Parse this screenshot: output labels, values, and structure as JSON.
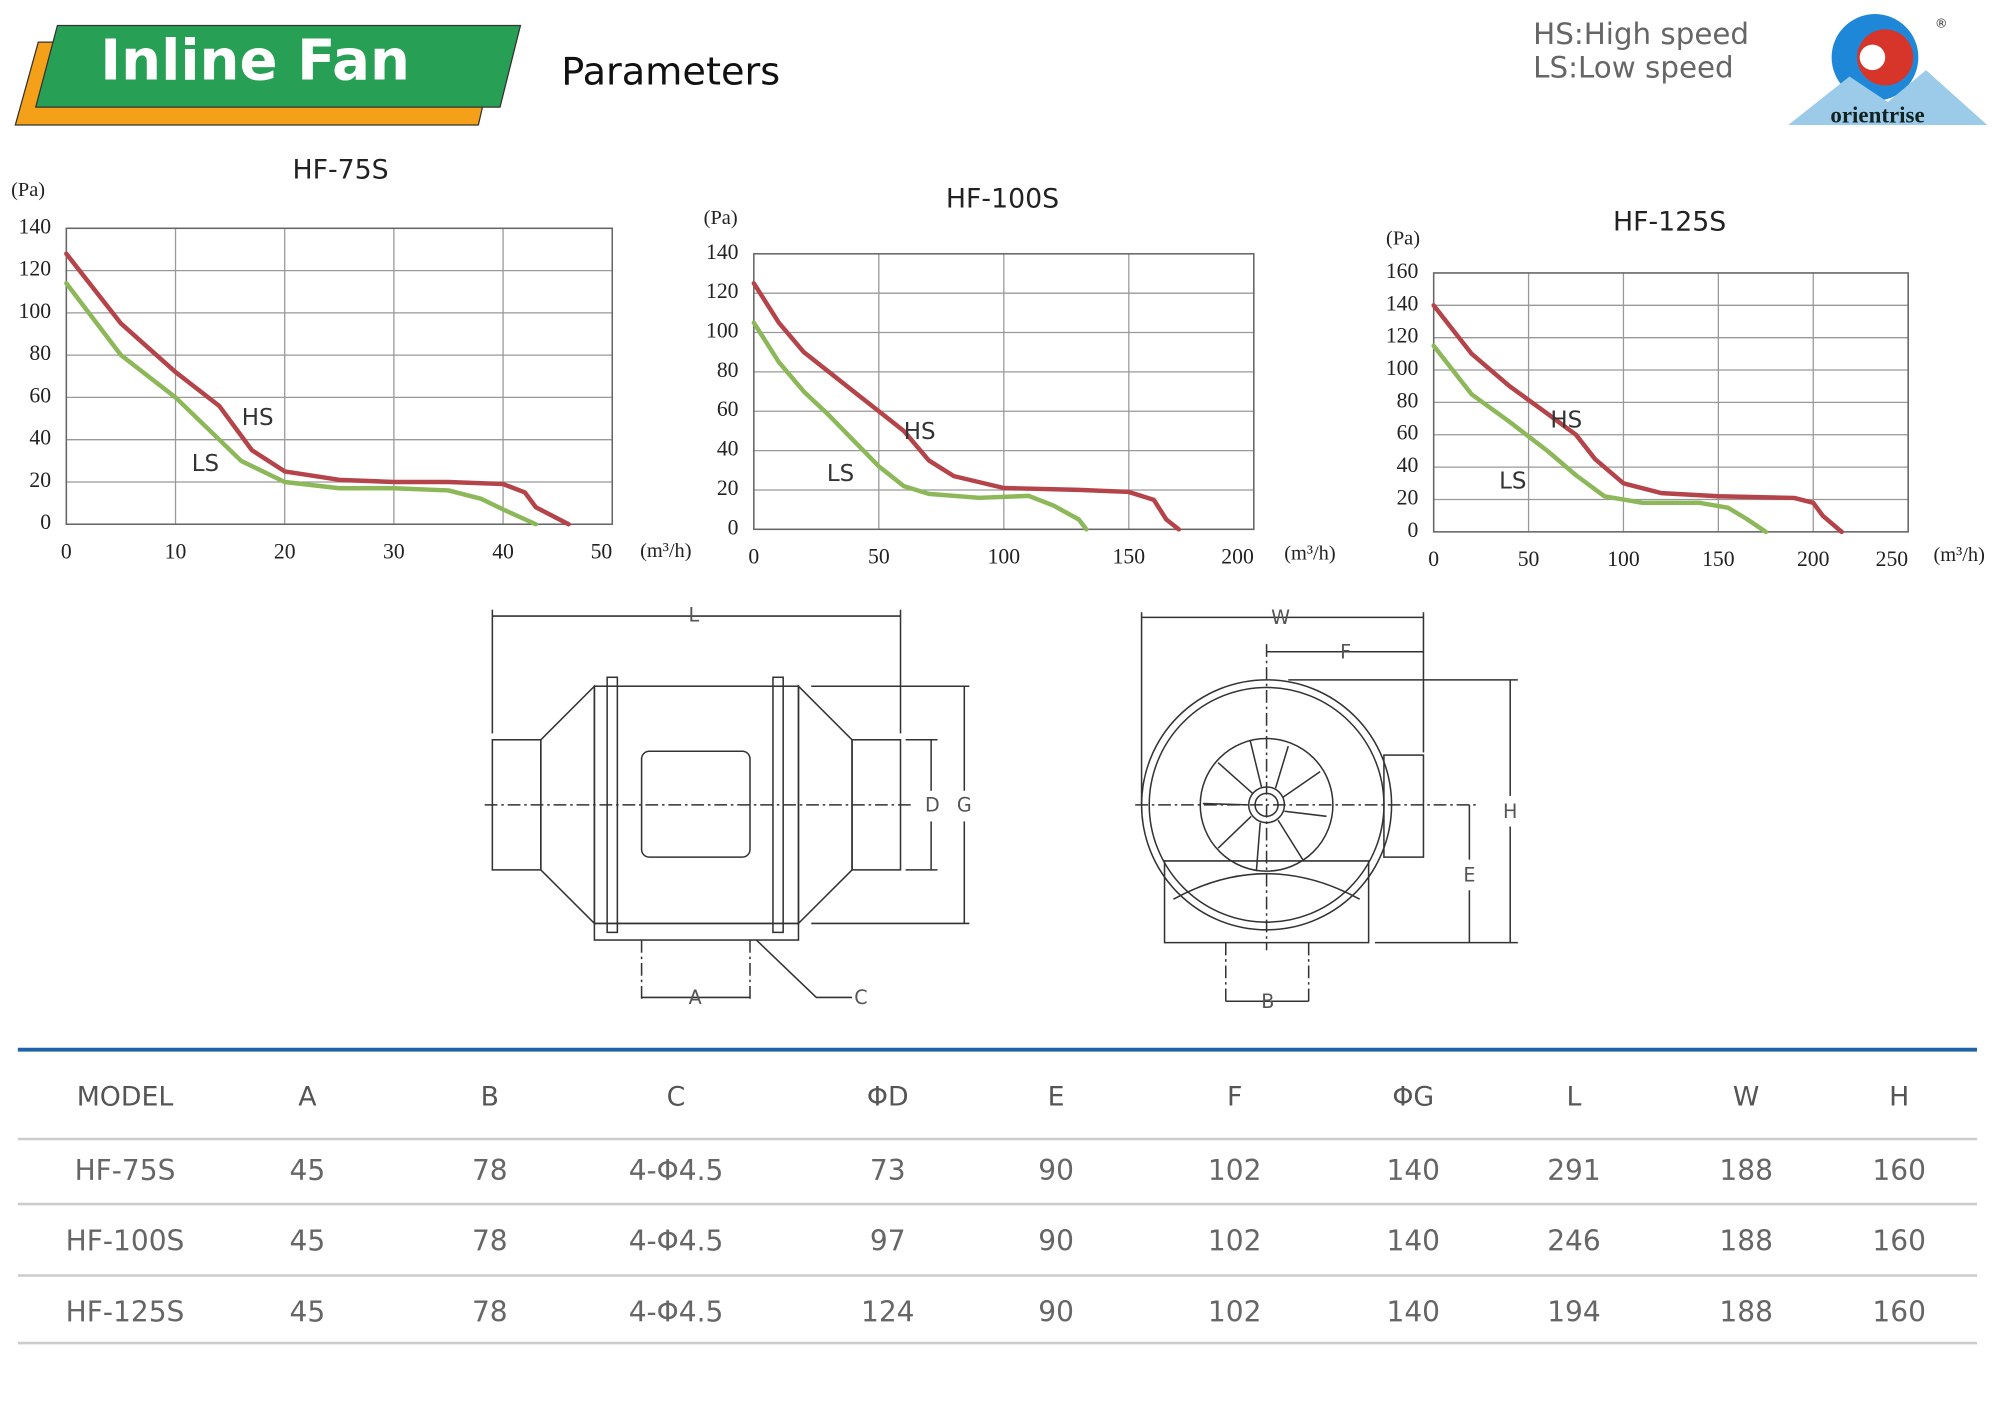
{
  "header": {
    "title": "Inline Fan",
    "subtitle": "Parameters",
    "legend_hs": "HS:High speed",
    "legend_ls": "LS:Low speed",
    "logo": "orientrise",
    "logo_mark": "®"
  },
  "chart_data": [
    {
      "type": "line",
      "title": "HF-75S",
      "y_label": "(Pa)",
      "x_label": "(m³/h)",
      "xlim": [
        0,
        50
      ],
      "ylim": [
        0,
        140
      ],
      "xticks": [
        0,
        10,
        20,
        30,
        40,
        50
      ],
      "yticks": [
        0,
        20,
        40,
        60,
        80,
        100,
        120,
        140
      ],
      "grid": true,
      "series": [
        {
          "name": "HS",
          "color": "#b5444a",
          "x": [
            0,
            5,
            10,
            14,
            17,
            20,
            25,
            30,
            35,
            40,
            42,
            43,
            46
          ],
          "values": [
            128,
            95,
            72,
            56,
            35,
            25,
            21,
            20,
            20,
            19,
            15,
            8,
            0
          ]
        },
        {
          "name": "LS",
          "color": "#8db85a",
          "x": [
            0,
            5,
            10,
            13,
            16,
            20,
            25,
            30,
            35,
            38,
            40,
            43
          ],
          "values": [
            114,
            80,
            60,
            45,
            30,
            20,
            17,
            17,
            16,
            12,
            7,
            0
          ]
        }
      ]
    },
    {
      "type": "line",
      "title": "HF-100S",
      "y_label": "(Pa)",
      "x_label": "(m³/h)",
      "xlim": [
        0,
        200
      ],
      "ylim": [
        0,
        140
      ],
      "xticks": [
        0,
        50,
        100,
        150,
        200
      ],
      "yticks": [
        0,
        20,
        40,
        60,
        80,
        100,
        120,
        140
      ],
      "grid": true,
      "series": [
        {
          "name": "HS",
          "color": "#b5444a",
          "x": [
            0,
            10,
            20,
            40,
            50,
            60,
            70,
            80,
            100,
            130,
            150,
            160,
            165,
            170
          ],
          "values": [
            125,
            105,
            90,
            70,
            60,
            50,
            35,
            27,
            21,
            20,
            19,
            15,
            5,
            0
          ]
        },
        {
          "name": "LS",
          "color": "#8db85a",
          "x": [
            0,
            10,
            20,
            30,
            40,
            50,
            60,
            70,
            90,
            110,
            120,
            130,
            133
          ],
          "values": [
            105,
            85,
            70,
            58,
            45,
            32,
            22,
            18,
            16,
            17,
            12,
            5,
            0
          ]
        }
      ]
    },
    {
      "type": "line",
      "title": "HF-125S",
      "y_label": "(Pa)",
      "x_label": "(m³/h)",
      "xlim": [
        0,
        250
      ],
      "ylim": [
        0,
        160
      ],
      "xticks": [
        0,
        50,
        100,
        150,
        200,
        250
      ],
      "yticks": [
        0,
        20,
        40,
        60,
        80,
        100,
        120,
        140,
        160
      ],
      "grid": true,
      "series": [
        {
          "name": "HS",
          "color": "#b5444a",
          "x": [
            0,
            20,
            40,
            60,
            75,
            85,
            100,
            120,
            150,
            190,
            200,
            205,
            215
          ],
          "values": [
            140,
            110,
            90,
            73,
            60,
            45,
            30,
            24,
            22,
            21,
            18,
            10,
            0
          ]
        },
        {
          "name": "LS",
          "color": "#8db85a",
          "x": [
            0,
            20,
            40,
            60,
            75,
            90,
            110,
            140,
            155,
            165,
            175
          ],
          "values": [
            115,
            85,
            68,
            50,
            35,
            22,
            18,
            18,
            15,
            8,
            0
          ]
        }
      ]
    }
  ],
  "diagram": {
    "labels": {
      "L": "L",
      "D": "D",
      "G": "G",
      "A": "A",
      "C": "C",
      "W": "W",
      "F": "F",
      "H": "H",
      "E": "E",
      "B": "B"
    }
  },
  "table": {
    "header": [
      "MODEL",
      "A",
      "B",
      "C",
      "ΦD",
      "E",
      "F",
      "ΦG",
      "L",
      "W",
      "H"
    ],
    "rows": [
      [
        "HF-75S",
        45,
        78,
        "4-Φ4.5",
        73,
        90,
        102,
        140,
        291,
        188,
        160
      ],
      [
        "HF-100S",
        45,
        78,
        "4-Φ4.5",
        97,
        90,
        102,
        140,
        246,
        188,
        160
      ],
      [
        "HF-125S",
        45,
        78,
        "4-Φ4.5",
        124,
        90,
        102,
        140,
        194,
        188,
        160
      ]
    ]
  }
}
